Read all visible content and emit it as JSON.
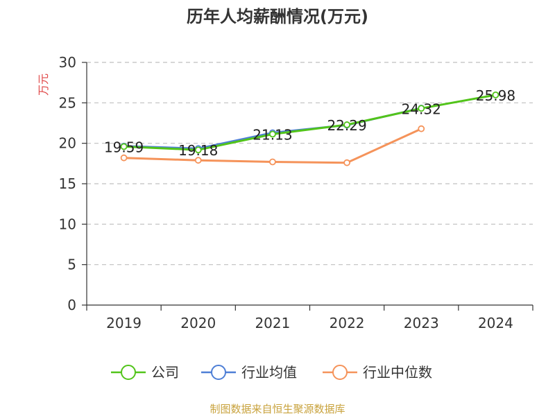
{
  "colors": {
    "company": "#52c41a",
    "industry_avg": "#4e7fd6",
    "industry_median": "#f5935a",
    "source": "#c8a23c",
    "ylabel": "#e04848",
    "axis": "#333333",
    "grid": "#bfbfbf"
  },
  "source": "制图数据来自恒生聚源数据库",
  "chart_data": {
    "type": "line",
    "title": "历年人均薪酬情况(万元)",
    "ylabel": "万元",
    "xlabel": "",
    "ylim": [
      0,
      30
    ],
    "yticks": [
      0,
      5,
      10,
      15,
      20,
      25,
      30
    ],
    "grid": true,
    "legend_position": "bottom-center",
    "categories": [
      "2019",
      "2020",
      "2021",
      "2022",
      "2023",
      "2024"
    ],
    "series": [
      {
        "key": "company",
        "name": "公司",
        "values": [
          19.59,
          19.18,
          21.13,
          22.29,
          24.32,
          25.98
        ]
      },
      {
        "key": "industry_avg",
        "name": "行业均值",
        "values": [
          19.65,
          19.35,
          21.3,
          22.25,
          24.35,
          null
        ]
      },
      {
        "key": "industry_median",
        "name": "行业中位数",
        "values": [
          18.2,
          17.9,
          17.7,
          17.6,
          21.8,
          null
        ]
      }
    ],
    "data_labels": [
      "19.59",
      "19.18",
      "21.13",
      "22.29",
      "24.32",
      "25.98"
    ]
  }
}
